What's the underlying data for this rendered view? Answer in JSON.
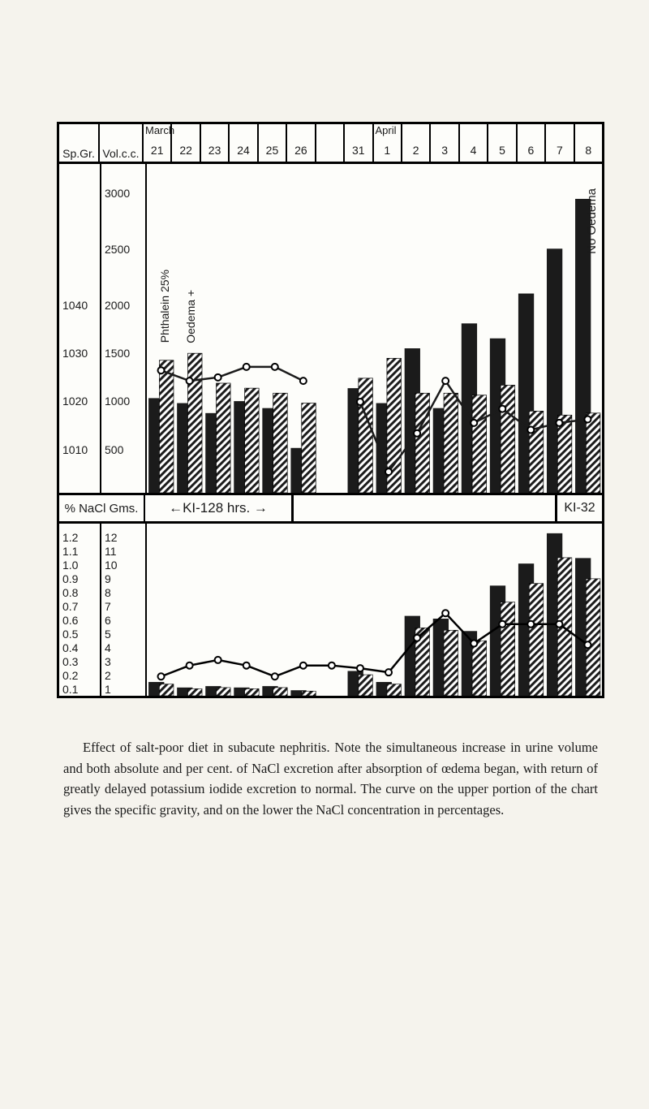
{
  "header": {
    "sp_gr": "Sp.Gr.",
    "vol_cc": "Vol.c.c.",
    "month1": "March",
    "month2": "April",
    "days": [
      "21",
      "22",
      "23",
      "24",
      "25",
      "26",
      "",
      "31",
      "1",
      "2",
      "3",
      "4",
      "5",
      "6",
      "7",
      "8"
    ]
  },
  "upper": {
    "sp_ticks": [
      {
        "v": "1040",
        "yf": 0.43
      },
      {
        "v": "1030",
        "yf": 0.575
      },
      {
        "v": "1020",
        "yf": 0.72
      },
      {
        "v": "1010",
        "yf": 0.87
      }
    ],
    "vol_ticks": [
      {
        "v": "3000",
        "yf": 0.09
      },
      {
        "v": "2500",
        "yf": 0.26
      },
      {
        "v": "2000",
        "yf": 0.43
      },
      {
        "v": "1500",
        "yf": 0.575
      },
      {
        "v": "1000",
        "yf": 0.72
      },
      {
        "v": "500",
        "yf": 0.87
      }
    ],
    "left_label1": "Phthalein 25%",
    "left_label2": "Oedema +",
    "right_label": "No Oedema",
    "bar_color": "#1b1b1b",
    "hatch_color": "#1b1b1b",
    "line_color": "#1b1b1b",
    "volumes": [
      950,
      900,
      800,
      920,
      850,
      450,
      null,
      1050,
      900,
      1450,
      850,
      1700,
      1550,
      2000,
      2450,
      2950
    ],
    "phthalein": [
      1330,
      1400,
      1100,
      1050,
      1000,
      900,
      null,
      1150,
      1350,
      1000,
      1000,
      980,
      1080,
      820,
      780,
      800
    ],
    "sp_gravity": [
      1020.5,
      1019,
      1019.5,
      1021,
      1021,
      1019,
      null,
      1016,
      1006,
      1011.5,
      1019,
      1013,
      1015,
      1012,
      1013,
      1013.5
    ],
    "vol_min": 0,
    "vol_max": 3300,
    "sp_min": 1003,
    "sp_max": 1050
  },
  "mid": {
    "left_label": "% NaCl Gms.",
    "mid_label": "←KI-128 hrs. →",
    "right_label": "KI-32"
  },
  "lower": {
    "pct_ticks": [
      {
        "v": "1.2",
        "yf": 0.08
      },
      {
        "v": "1.1",
        "yf": 0.16
      },
      {
        "v": "1.0",
        "yf": 0.24
      },
      {
        "v": "0.9",
        "yf": 0.32
      },
      {
        "v": "0.8",
        "yf": 0.4
      },
      {
        "v": "0.7",
        "yf": 0.48
      },
      {
        "v": "0.6",
        "yf": 0.56
      },
      {
        "v": "0.5",
        "yf": 0.64
      },
      {
        "v": "0.4",
        "yf": 0.72
      },
      {
        "v": "0.3",
        "yf": 0.8
      },
      {
        "v": "0.2",
        "yf": 0.88
      },
      {
        "v": "0.1",
        "yf": 0.96
      }
    ],
    "gms_ticks": [
      {
        "v": "12",
        "yf": 0.08
      },
      {
        "v": "11",
        "yf": 0.16
      },
      {
        "v": "10",
        "yf": 0.24
      },
      {
        "v": "9",
        "yf": 0.32
      },
      {
        "v": "8",
        "yf": 0.4
      },
      {
        "v": "7",
        "yf": 0.48
      },
      {
        "v": "6",
        "yf": 0.56
      },
      {
        "v": "5",
        "yf": 0.64
      },
      {
        "v": "4",
        "yf": 0.72
      },
      {
        "v": "3",
        "yf": 0.8
      },
      {
        "v": "2",
        "yf": 0.88
      },
      {
        "v": "1",
        "yf": 0.96
      }
    ],
    "grams": [
      1.0,
      0.6,
      0.7,
      0.6,
      0.7,
      0.4,
      null,
      1.8,
      1.0,
      5.8,
      5.6,
      4.7,
      8.0,
      9.6,
      11.8,
      10.0
    ],
    "percent": [
      0.14,
      0.22,
      0.26,
      0.22,
      0.14,
      0.22,
      0.22,
      0.2,
      0.17,
      0.42,
      0.6,
      0.38,
      0.52,
      0.52,
      0.52,
      0.37
    ],
    "g_min": 0,
    "g_max": 12.5,
    "p_min": 0,
    "p_max": 1.25
  },
  "caption": {
    "text": "Effect of salt-poor diet in subacute nephritis. Note the simultaneous increase in urine volume and both absolute and per cent. of NaCl excretion after absorption of œdema began, with return of greatly delayed potassium iodide excretion to normal. The curve on the upper portion of the chart gives the specific gravity, and on the lower the NaCl concentration in percentages."
  }
}
